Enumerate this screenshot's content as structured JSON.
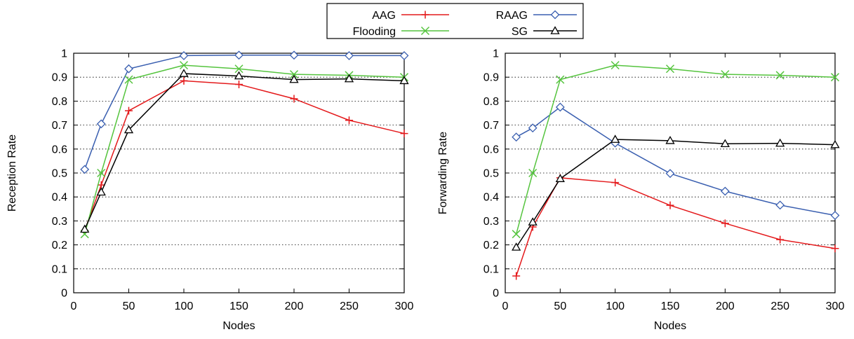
{
  "legend": {
    "entries": [
      {
        "name": "AAG",
        "color": "#e41a1c",
        "marker": "plus"
      },
      {
        "name": "RAAG",
        "color": "#3a5fb0",
        "marker": "diamond"
      },
      {
        "name": "Flooding",
        "color": "#55c43e",
        "marker": "cross"
      },
      {
        "name": "SG",
        "color": "#000000",
        "marker": "triangle"
      }
    ]
  },
  "chart_data": [
    {
      "type": "line",
      "xlabel": "Nodes",
      "ylabel": "Reception Rate",
      "xlim": [
        0,
        300
      ],
      "ylim": [
        0,
        1
      ],
      "xticks": [
        0,
        50,
        100,
        150,
        200,
        250,
        300
      ],
      "yticks": [
        0,
        0.1,
        0.2,
        0.3,
        0.4,
        0.5,
        0.6,
        0.7,
        0.8,
        0.9,
        1
      ],
      "grid": "horizontal",
      "x": [
        10,
        25,
        50,
        100,
        150,
        200,
        250,
        300
      ],
      "series": [
        {
          "name": "AAG",
          "color": "#e41a1c",
          "marker": "plus",
          "values": [
            0.26,
            0.45,
            0.76,
            0.885,
            0.87,
            0.81,
            0.72,
            0.665
          ]
        },
        {
          "name": "RAAG",
          "color": "#3a5fb0",
          "marker": "diamond",
          "values": [
            0.515,
            0.705,
            0.935,
            0.99,
            0.992,
            0.992,
            0.99,
            0.99
          ]
        },
        {
          "name": "Flooding",
          "color": "#55c43e",
          "marker": "cross",
          "values": [
            0.245,
            0.5,
            0.89,
            0.95,
            0.935,
            0.912,
            0.908,
            0.9
          ]
        },
        {
          "name": "SG",
          "color": "#000000",
          "marker": "triangle",
          "values": [
            0.265,
            0.42,
            0.68,
            0.915,
            0.905,
            0.89,
            0.893,
            0.885
          ]
        }
      ]
    },
    {
      "type": "line",
      "xlabel": "Nodes",
      "ylabel": "Forwarding Rate",
      "xlim": [
        0,
        300
      ],
      "ylim": [
        0,
        1
      ],
      "xticks": [
        0,
        50,
        100,
        150,
        200,
        250,
        300
      ],
      "yticks": [
        0,
        0.1,
        0.2,
        0.3,
        0.4,
        0.5,
        0.6,
        0.7,
        0.8,
        0.9,
        1
      ],
      "grid": "horizontal",
      "x": [
        10,
        25,
        50,
        100,
        150,
        200,
        250,
        300
      ],
      "series": [
        {
          "name": "AAG",
          "color": "#e41a1c",
          "marker": "plus",
          "values": [
            0.07,
            0.275,
            0.48,
            0.46,
            0.365,
            0.29,
            0.222,
            0.185
          ]
        },
        {
          "name": "RAAG",
          "color": "#3a5fb0",
          "marker": "diamond",
          "values": [
            0.65,
            0.688,
            0.775,
            0.625,
            0.498,
            0.424,
            0.366,
            0.323
          ]
        },
        {
          "name": "Flooding",
          "color": "#55c43e",
          "marker": "cross",
          "values": [
            0.245,
            0.5,
            0.89,
            0.95,
            0.935,
            0.912,
            0.908,
            0.9
          ]
        },
        {
          "name": "SG",
          "color": "#000000",
          "marker": "triangle",
          "values": [
            0.19,
            0.295,
            0.476,
            0.64,
            0.635,
            0.622,
            0.624,
            0.618
          ]
        }
      ]
    }
  ]
}
